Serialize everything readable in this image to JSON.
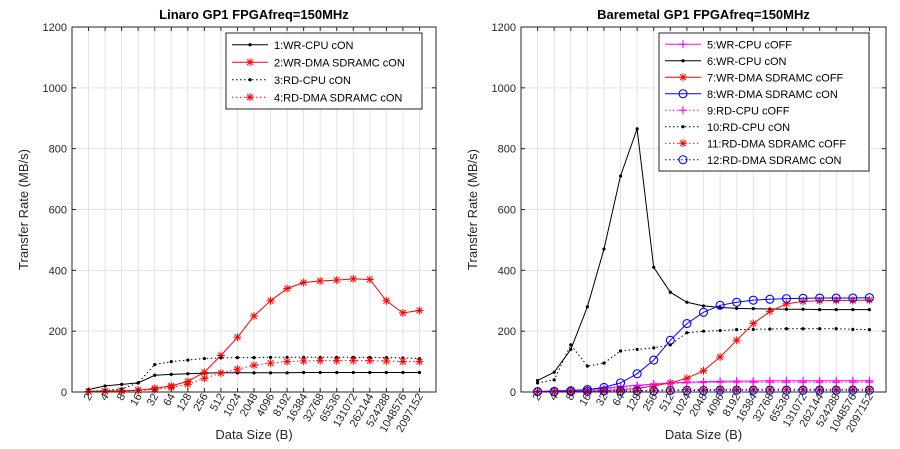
{
  "chart_data": [
    {
      "type": "line",
      "title": "Linaro GP1 FPGAfreq=150MHz",
      "xlabel": "Data Size (B)",
      "ylabel": "Transfer Rate (MB/s)",
      "ylim": [
        0,
        1200
      ],
      "yticks": [
        0,
        200,
        400,
        600,
        800,
        1000,
        1200
      ],
      "categories": [
        "2",
        "4",
        "8",
        "16",
        "32",
        "64",
        "128",
        "256",
        "512",
        "1024",
        "2048",
        "4096",
        "8192",
        "16384",
        "32768",
        "65536",
        "131072",
        "262144",
        "524288",
        "1048576",
        "2097152"
      ],
      "grid": true,
      "legend_position": "top-right",
      "series": [
        {
          "name": "1:WR-CPU cON",
          "color": "#000000",
          "line": "solid",
          "marker": "dot",
          "values": [
            8,
            20,
            25,
            30,
            55,
            58,
            60,
            62,
            63,
            63,
            63,
            63,
            63,
            64,
            64,
            64,
            64,
            64,
            64,
            64,
            64
          ]
        },
        {
          "name": "2:WR-DMA SDRAMC cON",
          "color": "#ff0000",
          "line": "solid",
          "marker": "asterisk",
          "values": [
            2,
            3,
            4,
            6,
            12,
            20,
            35,
            65,
            120,
            180,
            250,
            300,
            340,
            360,
            365,
            368,
            372,
            370,
            300,
            260,
            268
          ]
        },
        {
          "name": "3:RD-CPU cON",
          "color": "#000000",
          "line": "dotted",
          "marker": "dot",
          "values": [
            2,
            5,
            10,
            30,
            90,
            100,
            105,
            110,
            112,
            113,
            113,
            114,
            114,
            114,
            114,
            114,
            114,
            114,
            113,
            112,
            110
          ]
        },
        {
          "name": "4:RD-DMA SDRAMC cON",
          "color": "#ff0000",
          "line": "dotted",
          "marker": "asterisk",
          "values": [
            1,
            2,
            3,
            5,
            8,
            15,
            25,
            45,
            62,
            75,
            88,
            95,
            100,
            102,
            103,
            103,
            103,
            103,
            102,
            100,
            100
          ]
        }
      ]
    },
    {
      "type": "line",
      "title": "Baremetal GP1 FPGAfreq=150MHz",
      "xlabel": "Data Size (B)",
      "ylabel": "Transfer Rate (MB/s)",
      "ylim": [
        0,
        1200
      ],
      "yticks": [
        0,
        200,
        400,
        600,
        800,
        1000,
        1200
      ],
      "categories": [
        "2",
        "4",
        "8",
        "16",
        "32",
        "64",
        "128",
        "256",
        "512",
        "1024",
        "2048",
        "4096",
        "8192",
        "16384",
        "32768",
        "65536",
        "131072",
        "262144",
        "524288",
        "1048576",
        "2097152"
      ],
      "grid": true,
      "legend_position": "top-right",
      "series": [
        {
          "name": "5:WR-CPU cOFF",
          "color": "#ff00ff",
          "line": "solid",
          "marker": "plus",
          "values": [
            2,
            4,
            6,
            8,
            12,
            18,
            22,
            26,
            30,
            32,
            34,
            35,
            36,
            36,
            37,
            37,
            37,
            37,
            37,
            37,
            37
          ]
        },
        {
          "name": "6:WR-CPU cON",
          "color": "#000000",
          "line": "solid",
          "marker": "dot",
          "values": [
            38,
            65,
            140,
            280,
            470,
            710,
            865,
            410,
            328,
            295,
            283,
            278,
            275,
            274,
            273,
            272,
            272,
            271,
            271,
            271,
            271
          ]
        },
        {
          "name": "7:WR-DMA SDRAMC cOFF",
          "color": "#ff0000",
          "line": "solid",
          "marker": "asterisk",
          "values": [
            1,
            1,
            2,
            3,
            5,
            8,
            12,
            20,
            30,
            45,
            70,
            115,
            170,
            225,
            265,
            290,
            298,
            300,
            301,
            301,
            302
          ]
        },
        {
          "name": "8:WR-DMA SDRAMC cON",
          "color": "#0000ff",
          "line": "solid",
          "marker": "circle",
          "values": [
            1,
            2,
            4,
            8,
            15,
            30,
            60,
            105,
            170,
            225,
            262,
            285,
            295,
            302,
            305,
            307,
            308,
            309,
            309,
            309,
            310
          ]
        },
        {
          "name": "9:RD-CPU cOFF",
          "color": "#ff00ff",
          "line": "dotted",
          "marker": "plus",
          "values": [
            1,
            2,
            4,
            6,
            10,
            15,
            20,
            25,
            28,
            30,
            31,
            32,
            32,
            32,
            32,
            32,
            32,
            32,
            32,
            32,
            32
          ]
        },
        {
          "name": "10:RD-CPU cON",
          "color": "#000000",
          "line": "dotted",
          "marker": "dot",
          "values": [
            30,
            40,
            155,
            85,
            95,
            135,
            140,
            145,
            155,
            195,
            200,
            202,
            205,
            206,
            207,
            208,
            208,
            208,
            208,
            206,
            205
          ]
        },
        {
          "name": "11:RD-DMA SDRAMC cOFF",
          "color": "#ff0000",
          "line": "dotted",
          "marker": "asterisk",
          "values": [
            1,
            1,
            2,
            2,
            3,
            4,
            5,
            6,
            7,
            8,
            8,
            9,
            9,
            9,
            9,
            9,
            9,
            9,
            9,
            9,
            9
          ]
        },
        {
          "name": "12:RD-DMA SDRAMC cON",
          "color": "#0000ff",
          "line": "dotted",
          "marker": "circle",
          "values": [
            1,
            1,
            2,
            2,
            3,
            3,
            4,
            4,
            5,
            5,
            5,
            6,
            6,
            6,
            6,
            6,
            6,
            6,
            6,
            6,
            6
          ]
        }
      ]
    }
  ]
}
